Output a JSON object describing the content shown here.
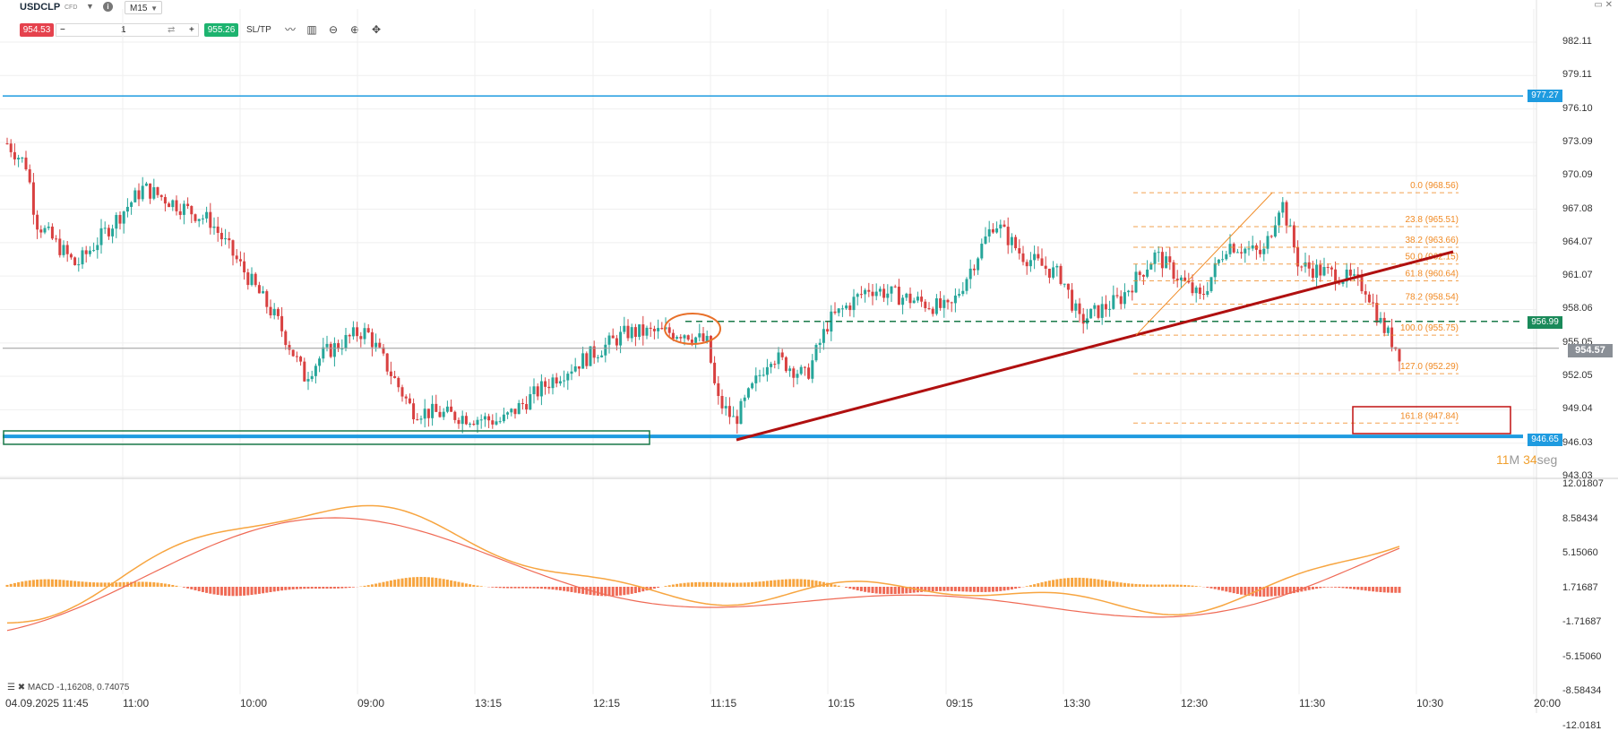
{
  "toolbar": {
    "symbol": "USDCLP",
    "symbol_type": "CFD",
    "timeframe": "M15",
    "sell_price": "954.53",
    "quantity": "1",
    "minus": "−",
    "plus": "+",
    "buy_price": "955.26",
    "sltp_label": "SL/TP",
    "window_controls": "▭ ✕"
  },
  "price_axis": {
    "labels": [
      "982.11",
      "979.11",
      "976.10",
      "973.09",
      "970.09",
      "967.08",
      "964.07",
      "961.07",
      "958.06",
      "955.05",
      "952.05",
      "949.04",
      "946.03",
      "943.03"
    ]
  },
  "price_tags": {
    "blue_top": "977.27",
    "green_dashed": "956.99",
    "current": "954.57",
    "blue_bottom": "946.65"
  },
  "fibonacci": {
    "levels": [
      {
        "label": "0.0 (968.56)",
        "price": 968.56
      },
      {
        "label": "23.8 (965.51)",
        "price": 965.51
      },
      {
        "label": "38.2 (963.66)",
        "price": 963.66
      },
      {
        "label": "50.0 (962.15)",
        "price": 962.15
      },
      {
        "label": "61.8 (960.64)",
        "price": 960.64
      },
      {
        "label": "78.2 (958.54)",
        "price": 958.54
      },
      {
        "label": "100.0 (955.75)",
        "price": 955.75
      },
      {
        "label": "127.0 (952.29)",
        "price": 952.29
      },
      {
        "label": "161.8 (947.84)",
        "price": 947.84
      }
    ]
  },
  "timer": {
    "minutes": "11",
    "min_unit": "M",
    "seconds": "34",
    "sec_unit": "seg"
  },
  "macd": {
    "label": "MACD -1,16208, 0.74075",
    "axis_labels": [
      "12.01807",
      "8.58434",
      "5.15060",
      "1.71687",
      "-1.71687",
      "-5.15060",
      "-8.58434",
      "-12.0181"
    ]
  },
  "time_axis": {
    "labels": [
      "04.09.2025 11:45",
      "11:00",
      "10:00",
      "09:00",
      "13:15",
      "12:15",
      "11:15",
      "10:15",
      "09:15",
      "13:30",
      "12:30",
      "11:30",
      "10:30",
      "20:00"
    ]
  },
  "colors": {
    "up": "#26a69a",
    "down": "#d84040",
    "blue_line": "#1e9be0",
    "fib": "#f08a24",
    "trend": "#b01010",
    "macd_pos": "#f7a540",
    "macd_neg": "#ef6a55"
  }
}
